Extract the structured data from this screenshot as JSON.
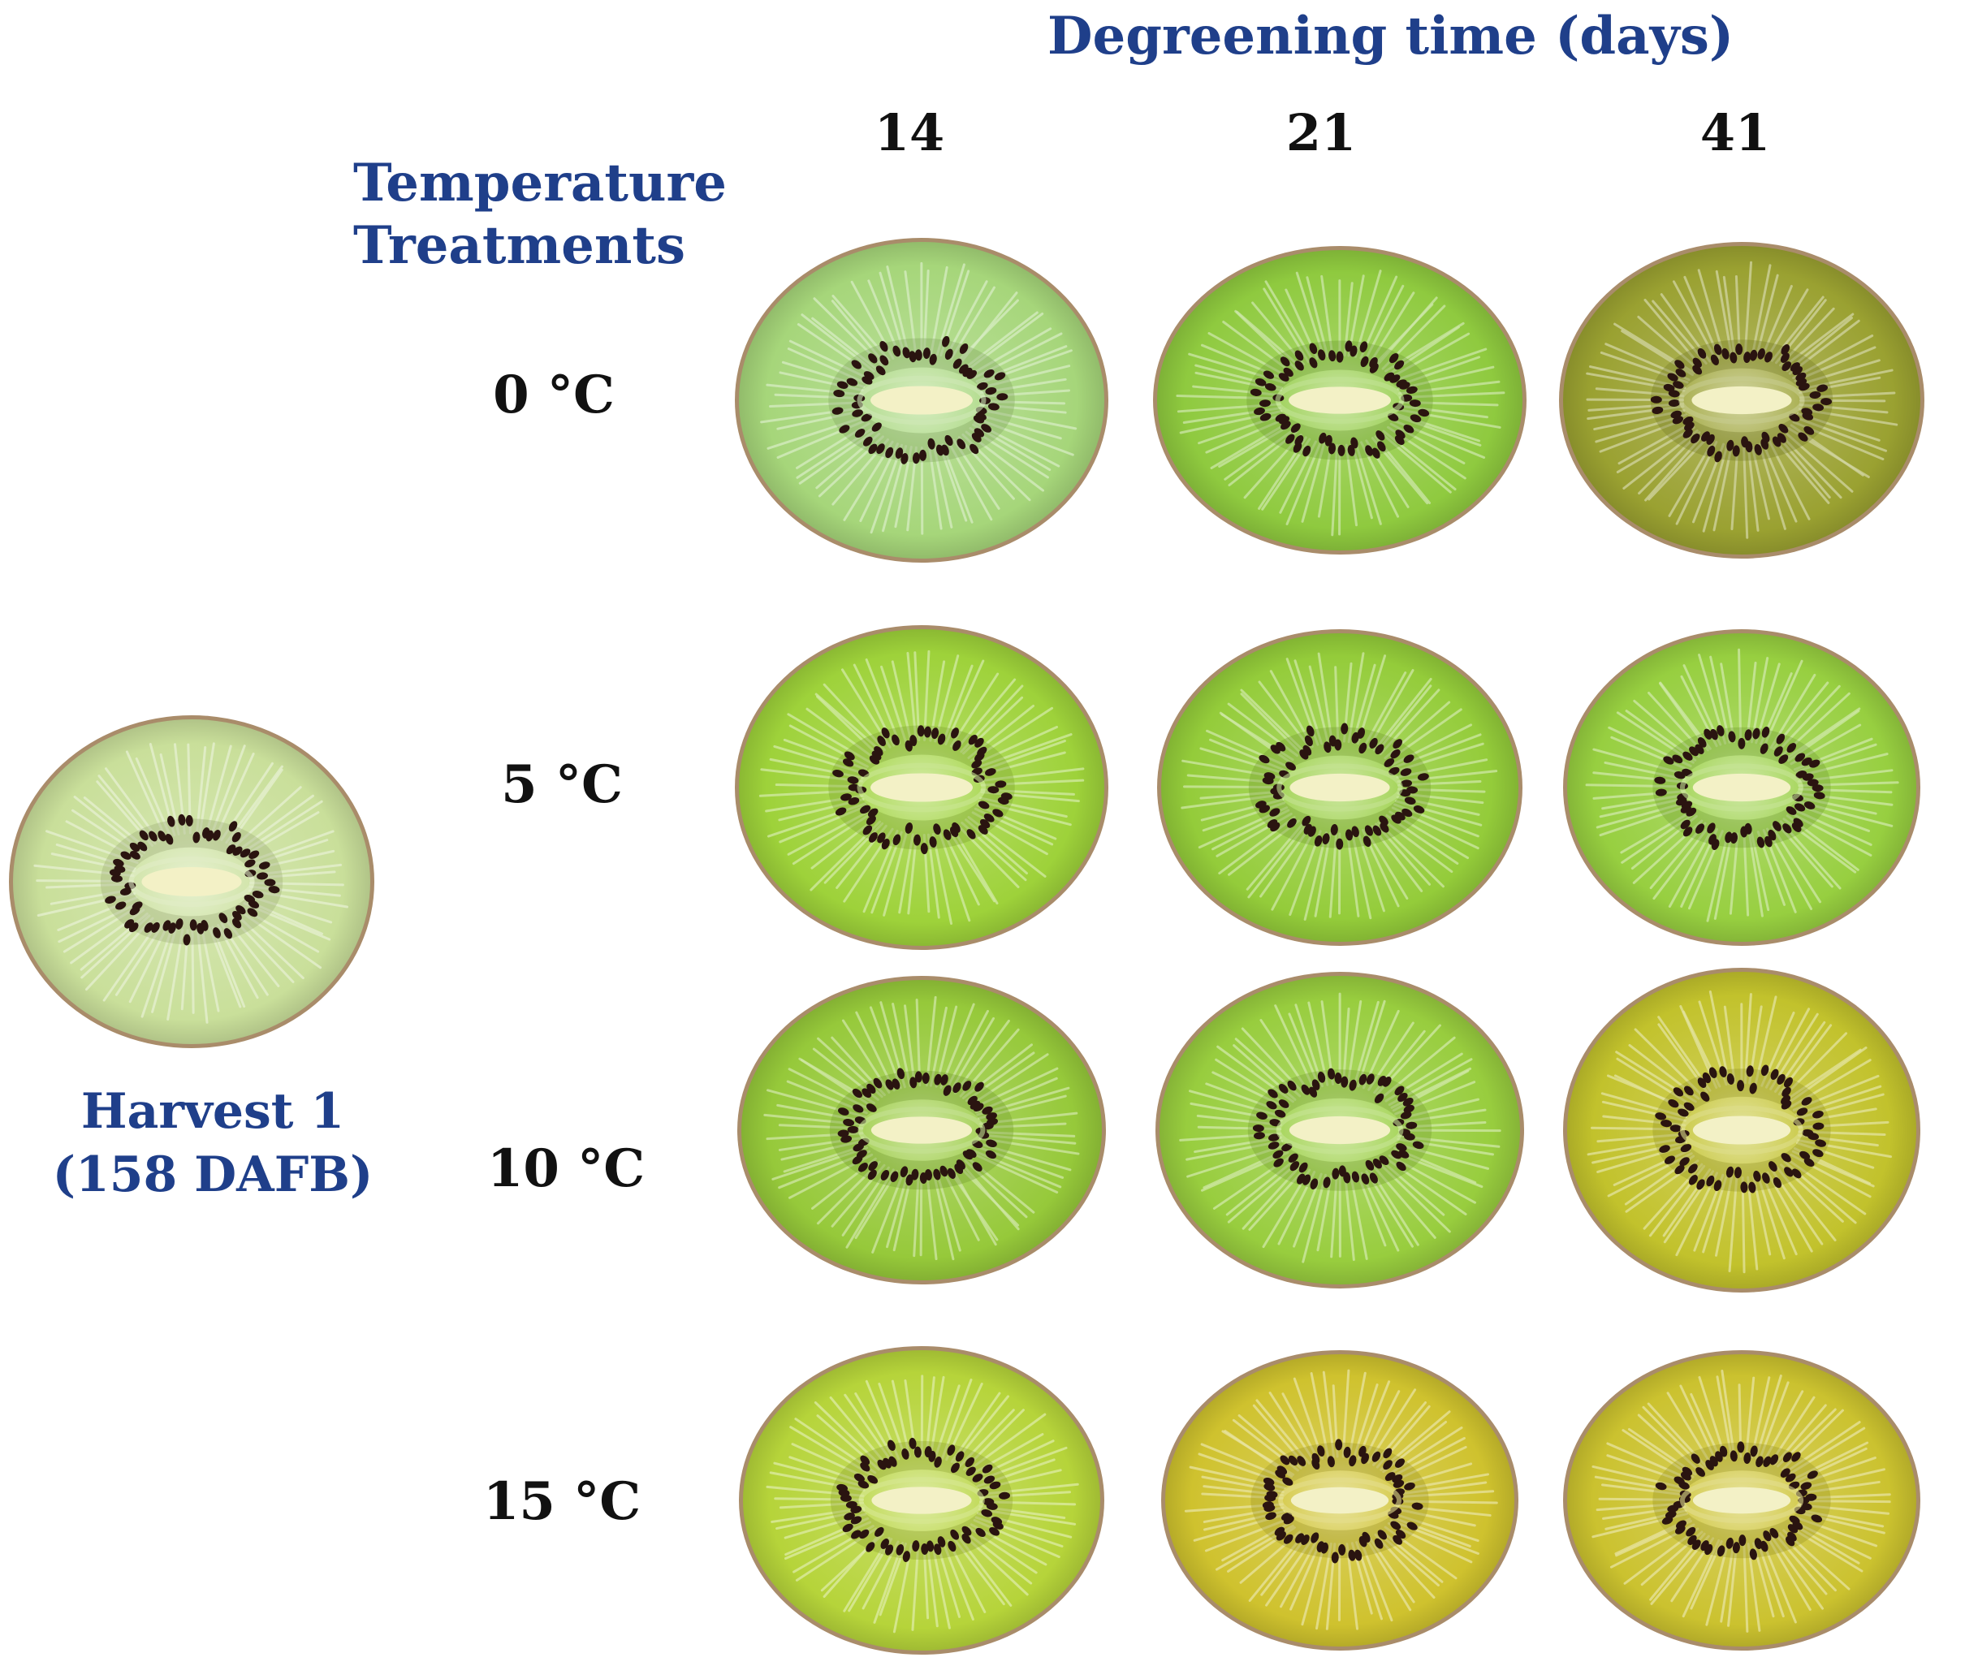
{
  "figure": {
    "header_title": "Degreening time (days)",
    "columns": [
      "14",
      "21",
      "41"
    ],
    "treatments_title_line1": "Temperature",
    "treatments_title_line2": "Treatments",
    "rows": [
      "0 °C",
      "5 °C",
      "10 °C",
      "15 °C"
    ],
    "harvest_line1": "Harvest 1",
    "harvest_line2": "(158 DAFB)"
  },
  "colors": {
    "label_blue": "#1f3f8a",
    "label_black": "#111111",
    "skin_brown": "#a98c6a",
    "seed_dark": "#2a1410",
    "core_cream": "#f3f1c6",
    "flesh_reference": "#c9df9a",
    "flesh": [
      [
        "#a6d67a",
        "#8fca3f",
        "#9aa131"
      ],
      [
        "#9ed23a",
        "#94cc3a",
        "#97cf40"
      ],
      [
        "#96c93a",
        "#98cd3e",
        "#c2c22c"
      ],
      [
        "#b6d43a",
        "#cfc22e",
        "#cbc22f"
      ]
    ]
  },
  "photos": {
    "reference": "harvest-1-kiwi-slice",
    "grid": "treated-kiwi-slices"
  }
}
